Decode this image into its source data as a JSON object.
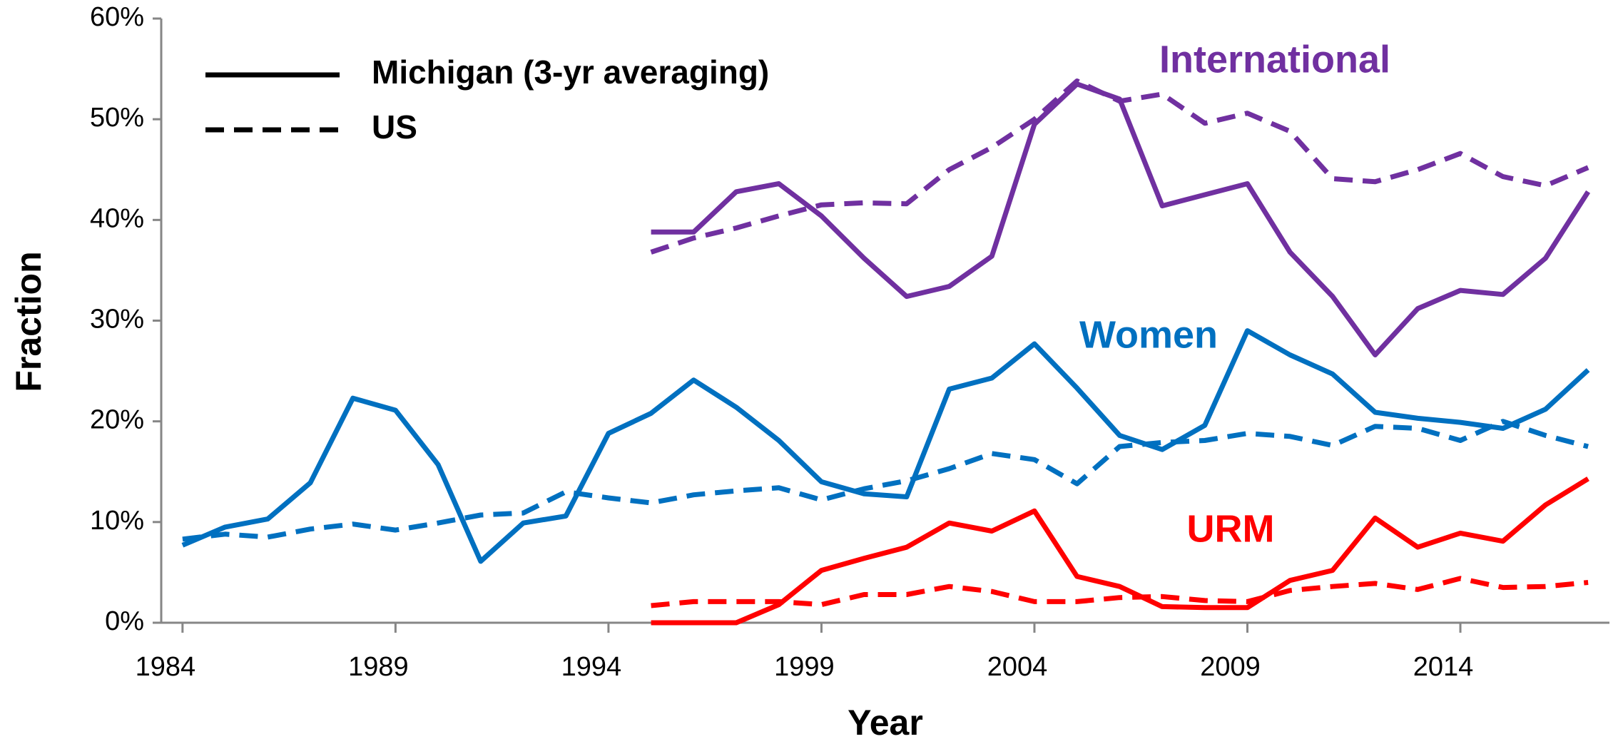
{
  "chart_data": {
    "type": "line",
    "xlabel": "Year",
    "ylabel": "Fraction",
    "x": [
      1984,
      1985,
      1986,
      1987,
      1988,
      1989,
      1990,
      1991,
      1992,
      1993,
      1994,
      1995,
      1996,
      1997,
      1998,
      1999,
      2000,
      2001,
      2002,
      2003,
      2004,
      2005,
      2006,
      2007,
      2008,
      2009,
      2010,
      2011,
      2012,
      2013,
      2014,
      2015,
      2016,
      2017
    ],
    "xlim": [
      1983.5,
      2017.5
    ],
    "xticks": [
      1984,
      1989,
      1994,
      1999,
      2004,
      2009,
      2014
    ],
    "ylim": [
      0,
      60
    ],
    "yticks": [
      {
        "value": 0,
        "label": "0%"
      },
      {
        "value": 10,
        "label": "10%"
      },
      {
        "value": 20,
        "label": "20%"
      },
      {
        "value": 30,
        "label": "30%"
      },
      {
        "value": 40,
        "label": "40%"
      },
      {
        "value": 50,
        "label": "50%"
      },
      {
        "value": 60,
        "label": "60%"
      }
    ],
    "line_styles": [
      {
        "name": "Michigan (3-yr averaging)",
        "dashed": false
      },
      {
        "name": "US",
        "dashed": true
      }
    ],
    "legend": "upper left",
    "series": [
      {
        "name": "International",
        "color": "#7030a0",
        "values": [
          [
            null,
            null,
            null,
            null,
            null,
            null,
            null,
            null,
            null,
            null,
            null,
            38.8,
            38.8,
            42.8,
            43.6,
            40.4,
            36.2,
            32.4,
            33.4,
            36.4,
            49.5,
            53.5,
            52.0,
            41.4,
            42.5,
            43.6,
            36.8,
            32.4,
            26.6,
            31.2,
            33.0,
            32.6,
            36.2,
            42.8
          ],
          [
            null,
            null,
            null,
            null,
            null,
            null,
            null,
            null,
            null,
            null,
            null,
            36.8,
            38.2,
            39.2,
            40.4,
            41.5,
            41.7,
            41.6,
            45.0,
            47.2,
            50.0,
            53.8,
            51.8,
            52.5,
            49.6,
            50.6,
            48.8,
            44.1,
            43.8,
            45.0,
            46.6,
            44.3,
            43.4,
            45.2
          ]
        ]
      },
      {
        "name": "Women",
        "color": "#0070c0",
        "values": [
          [
            7.7,
            9.5,
            10.3,
            13.9,
            22.3,
            21.1,
            15.7,
            6.1,
            9.9,
            10.6,
            18.8,
            20.8,
            24.1,
            21.4,
            18.1,
            14.0,
            12.8,
            12.5,
            23.2,
            24.3,
            27.7,
            23.3,
            18.6,
            17.2,
            19.6,
            29.0,
            26.6,
            24.7,
            20.9,
            20.3,
            19.9,
            19.3,
            21.2,
            25.1
          ],
          [
            8.3,
            8.8,
            8.5,
            9.3,
            9.8,
            9.2,
            9.9,
            10.7,
            10.9,
            13.0,
            12.4,
            11.9,
            12.7,
            13.1,
            13.4,
            12.2,
            13.3,
            14.1,
            15.3,
            16.8,
            16.2,
            13.8,
            17.5,
            17.9,
            18.1,
            18.8,
            18.5,
            17.6,
            19.5,
            19.3,
            18.1,
            20.0,
            18.6,
            17.5
          ]
        ]
      },
      {
        "name": "URM",
        "color": "#ff0000",
        "values": [
          [
            null,
            null,
            null,
            null,
            null,
            null,
            null,
            null,
            null,
            null,
            null,
            0,
            0,
            0,
            1.8,
            5.2,
            6.4,
            7.5,
            9.9,
            9.1,
            11.1,
            4.6,
            3.6,
            1.6,
            1.5,
            1.5,
            4.2,
            5.2,
            10.4,
            7.5,
            8.9,
            8.1,
            11.7,
            14.3
          ],
          [
            null,
            null,
            null,
            null,
            null,
            null,
            null,
            null,
            null,
            null,
            null,
            1.7,
            2.1,
            2.1,
            2.1,
            1.8,
            2.8,
            2.8,
            3.6,
            3.1,
            2.1,
            2.1,
            2.5,
            2.6,
            2.2,
            2.1,
            3.2,
            3.6,
            3.9,
            3.3,
            4.4,
            3.5,
            3.6,
            4.0
          ]
        ]
      }
    ]
  }
}
